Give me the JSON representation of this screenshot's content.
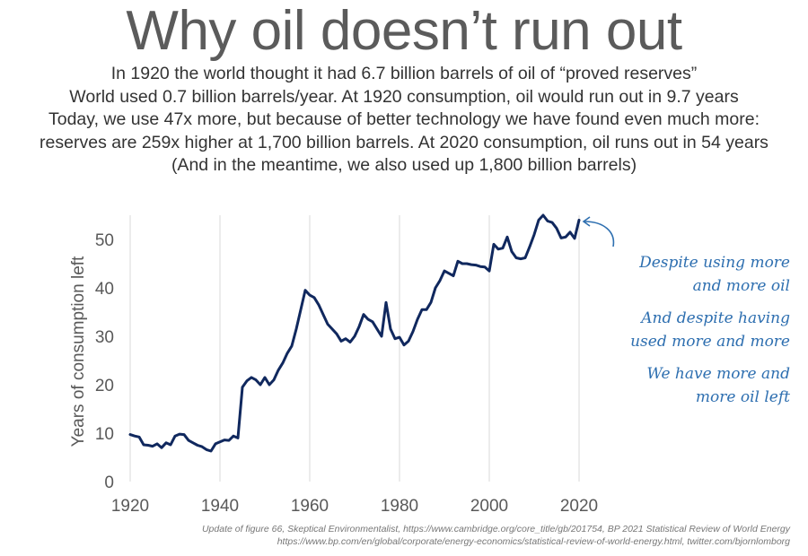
{
  "title": "Why oil doesn’t run out",
  "subtitle_lines": [
    "In 1920 the world thought it had 6.7 billion barrels of oil of “proved reserves”",
    "World used 0.7 billion barrels/year. At 1920 consumption, oil would run out in 9.7 years",
    "Today, we use 47x more, but because of better technology we have found even much more:",
    "reserves are 259x higher at 1,700 billion barrels. At 2020 consumption, oil runs out in 54 years",
    "(And in the meantime, we also used up 1,800 billion barrels)"
  ],
  "annotations": [
    {
      "line1": "Despite using more",
      "line2": "and more oil"
    },
    {
      "line1": "And despite having",
      "line2": "used more and more"
    },
    {
      "line1": "We have more and",
      "line2": "more oil left"
    }
  ],
  "footer": {
    "line1": "Update of figure 66, Skeptical Environmentalist, https://www.cambridge.org/core_title/gb/201754, BP 2021 Statistical Review of World Energy",
    "line2": "https://www.bp.com/en/global/corporate/energy-economics/statistical-review-of-world-energy.html, twitter.com/bjornlomborg"
  },
  "chart_data": {
    "type": "line",
    "ylabel": "Years of consumption left",
    "xlabel": "",
    "xlim": [
      1920,
      2020
    ],
    "ylim": [
      0,
      55
    ],
    "xticks": [
      1920,
      1940,
      1960,
      1980,
      2000,
      2020
    ],
    "yticks": [
      0,
      10,
      20,
      30,
      40,
      50
    ],
    "grid": "vertical",
    "line_color": "#10285e",
    "annotation_color": "#2e6fb0",
    "series": [
      {
        "name": "",
        "x": [
          1920,
          1921,
          1922,
          1923,
          1924,
          1925,
          1926,
          1927,
          1928,
          1929,
          1930,
          1931,
          1932,
          1933,
          1934,
          1935,
          1936,
          1937,
          1938,
          1939,
          1940,
          1941,
          1942,
          1943,
          1944,
          1945,
          1946,
          1947,
          1948,
          1949,
          1950,
          1951,
          1952,
          1953,
          1954,
          1955,
          1956,
          1957,
          1958,
          1959,
          1960,
          1961,
          1962,
          1963,
          1964,
          1965,
          1966,
          1967,
          1968,
          1969,
          1970,
          1971,
          1972,
          1973,
          1974,
          1975,
          1976,
          1977,
          1978,
          1979,
          1980,
          1981,
          1982,
          1983,
          1984,
          1985,
          1986,
          1987,
          1988,
          1989,
          1990,
          1991,
          1992,
          1993,
          1994,
          1995,
          1996,
          1997,
          1998,
          1999,
          2000,
          2001,
          2002,
          2003,
          2004,
          2005,
          2006,
          2007,
          2008,
          2009,
          2010,
          2011,
          2012,
          2013,
          2014,
          2015,
          2016,
          2017,
          2018,
          2019,
          2020
        ],
        "values": [
          9.7,
          9.4,
          9.2,
          7.6,
          7.5,
          7.3,
          7.8,
          7.0,
          8.0,
          7.6,
          9.4,
          9.8,
          9.7,
          8.5,
          8.0,
          7.5,
          7.2,
          6.6,
          6.3,
          7.8,
          8.2,
          8.6,
          8.5,
          9.4,
          9.0,
          19.5,
          20.8,
          21.5,
          21.0,
          20.0,
          21.5,
          20.0,
          21.0,
          23.0,
          24.5,
          26.5,
          28.0,
          31.5,
          35.5,
          39.5,
          38.5,
          38.0,
          36.5,
          34.5,
          32.5,
          31.5,
          30.5,
          29.0,
          29.5,
          28.8,
          30.0,
          32.0,
          34.5,
          33.5,
          33.0,
          31.5,
          30.0,
          37.0,
          31.5,
          29.5,
          29.8,
          28.2,
          29.0,
          31.0,
          33.5,
          35.5,
          35.5,
          37.0,
          40.0,
          41.5,
          43.5,
          43.0,
          42.5,
          45.5,
          45.0,
          45.0,
          44.8,
          44.7,
          44.4,
          44.3,
          43.5,
          49.0,
          48.0,
          48.2,
          50.5,
          47.5,
          46.2,
          46.0,
          46.2,
          48.5,
          51.0,
          54.0,
          55.0,
          53.8,
          53.5,
          52.3,
          50.3,
          50.5,
          51.5,
          50.2,
          54.0
        ]
      }
    ]
  }
}
